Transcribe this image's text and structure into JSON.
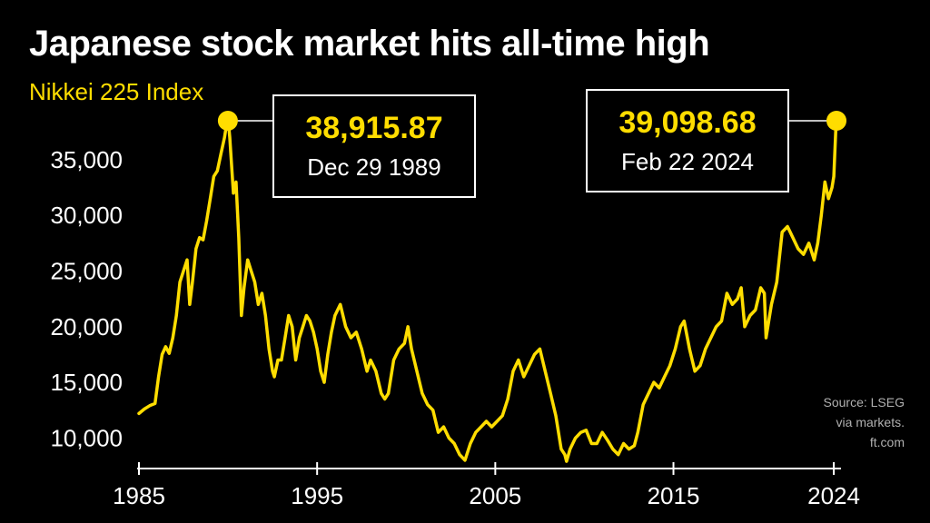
{
  "header": {
    "title": "Japanese stock market hits all-time high",
    "subtitle": "Nikkei 225 Index"
  },
  "source_lines": [
    "Source: LSEG",
    "via markets.",
    "ft.com"
  ],
  "colors": {
    "background": "#000000",
    "line": "#ffdd00",
    "text": "#ffffff",
    "source": "#b0b0b0"
  },
  "chart_data": {
    "type": "line",
    "title": "Japanese stock market hits all-time high",
    "subtitle": "Nikkei 225 Index",
    "xlabel": "",
    "ylabel": "",
    "xlim": [
      1985,
      2024.2
    ],
    "ylim": [
      7500,
      38500
    ],
    "x_ticks": [
      1985,
      1995,
      2005,
      2015,
      2024
    ],
    "x_tick_labels": [
      "1985",
      "1995",
      "2005",
      "2015",
      "2024"
    ],
    "y_ticks": [
      10000,
      15000,
      20000,
      25000,
      30000,
      35000
    ],
    "y_tick_labels": [
      "10,000",
      "15,000",
      "20,000",
      "25,000",
      "30,000",
      "35,000"
    ],
    "grid": false,
    "legend": "none",
    "series": [
      {
        "x": [
          1985.0,
          1985.3,
          1985.6,
          1985.9,
          1986.1,
          1986.3,
          1986.5,
          1986.7,
          1986.9,
          1987.1,
          1987.3,
          1987.5,
          1987.7,
          1987.85,
          1988.0,
          1988.2,
          1988.4,
          1988.6,
          1988.8,
          1989.0,
          1989.2,
          1989.4,
          1989.6,
          1989.8,
          1989.99,
          1990.1,
          1990.3,
          1990.45,
          1990.6,
          1990.75,
          1990.9,
          1991.1,
          1991.3,
          1991.5,
          1991.7,
          1991.9,
          1992.1,
          1992.3,
          1992.5,
          1992.6,
          1992.8,
          1993.0,
          1993.2,
          1993.4,
          1993.6,
          1993.8,
          1994.0,
          1994.2,
          1994.4,
          1994.6,
          1994.8,
          1995.0,
          1995.2,
          1995.4,
          1995.6,
          1995.8,
          1996.0,
          1996.3,
          1996.6,
          1996.9,
          1997.2,
          1997.5,
          1997.8,
          1998.0,
          1998.3,
          1998.6,
          1998.8,
          1999.0,
          1999.3,
          1999.6,
          1999.9,
          2000.1,
          2000.3,
          2000.6,
          2000.9,
          2001.2,
          2001.5,
          2001.8,
          2002.1,
          2002.4,
          2002.7,
          2003.0,
          2003.3,
          2003.6,
          2003.9,
          2004.2,
          2004.5,
          2004.8,
          2005.1,
          2005.4,
          2005.7,
          2006.0,
          2006.3,
          2006.6,
          2006.9,
          2007.2,
          2007.5,
          2007.8,
          2008.1,
          2008.4,
          2008.7,
          2008.9,
          2009.0,
          2009.2,
          2009.5,
          2009.8,
          2010.1,
          2010.4,
          2010.7,
          2011.0,
          2011.3,
          2011.6,
          2011.9,
          2012.2,
          2012.5,
          2012.8,
          2013.0,
          2013.3,
          2013.6,
          2013.9,
          2014.2,
          2014.5,
          2014.8,
          2015.1,
          2015.4,
          2015.6,
          2015.9,
          2016.2,
          2016.5,
          2016.8,
          2017.1,
          2017.4,
          2017.7,
          2018.0,
          2018.3,
          2018.6,
          2018.8,
          2019.0,
          2019.3,
          2019.6,
          2019.9,
          2020.1,
          2020.2,
          2020.5,
          2020.8,
          2021.1,
          2021.4,
          2021.7,
          2022.0,
          2022.3,
          2022.6,
          2022.9,
          2023.1,
          2023.3,
          2023.5,
          2023.7,
          2023.9,
          2024.0,
          2024.15
        ],
        "values": [
          12200,
          12600,
          12900,
          13100,
          15500,
          17500,
          18200,
          17600,
          19000,
          21000,
          24000,
          25000,
          26000,
          22000,
          24000,
          27000,
          28000,
          27800,
          29500,
          31500,
          33500,
          34000,
          35500,
          37000,
          38915.87,
          37000,
          32000,
          33000,
          28000,
          21000,
          23500,
          26000,
          25000,
          24000,
          22000,
          23000,
          21000,
          18000,
          16000,
          15500,
          17000,
          17000,
          19000,
          21000,
          20000,
          17000,
          19000,
          20000,
          21000,
          20500,
          19500,
          18000,
          16000,
          15000,
          17500,
          19500,
          21000,
          22000,
          20000,
          19000,
          19500,
          18000,
          16000,
          17000,
          16000,
          14000,
          13500,
          14000,
          17000,
          18000,
          18500,
          20000,
          18000,
          16000,
          14000,
          13000,
          12500,
          10500,
          11000,
          10000,
          9500,
          8500,
          8000,
          9500,
          10500,
          11000,
          11500,
          11000,
          11500,
          12000,
          13500,
          16000,
          17000,
          15500,
          16500,
          17500,
          18000,
          16000,
          14000,
          12000,
          9000,
          8500,
          7900,
          9000,
          10000,
          10500,
          10700,
          9500,
          9500,
          10500,
          9800,
          9000,
          8500,
          9500,
          9000,
          9300,
          10500,
          13000,
          14000,
          15000,
          14500,
          15500,
          16500,
          18000,
          20000,
          20500,
          18000,
          16000,
          16500,
          18000,
          19000,
          20000,
          20500,
          23000,
          22000,
          22500,
          23500,
          20000,
          21000,
          21500,
          23500,
          23000,
          19000,
          22000,
          24000,
          28500,
          29000,
          28000,
          27000,
          26500,
          27500,
          26000,
          27500,
          30000,
          33000,
          31500,
          32500,
          33500,
          39098.68
        ]
      }
    ],
    "annotations": [
      {
        "value_text": "38,915.87",
        "date_text": "Dec 29 1989",
        "x": 1989.99,
        "y": 38915.87
      },
      {
        "value_text": "39,098.68",
        "date_text": "Feb 22 2024",
        "x": 2024.15,
        "y": 39098.68
      }
    ]
  }
}
